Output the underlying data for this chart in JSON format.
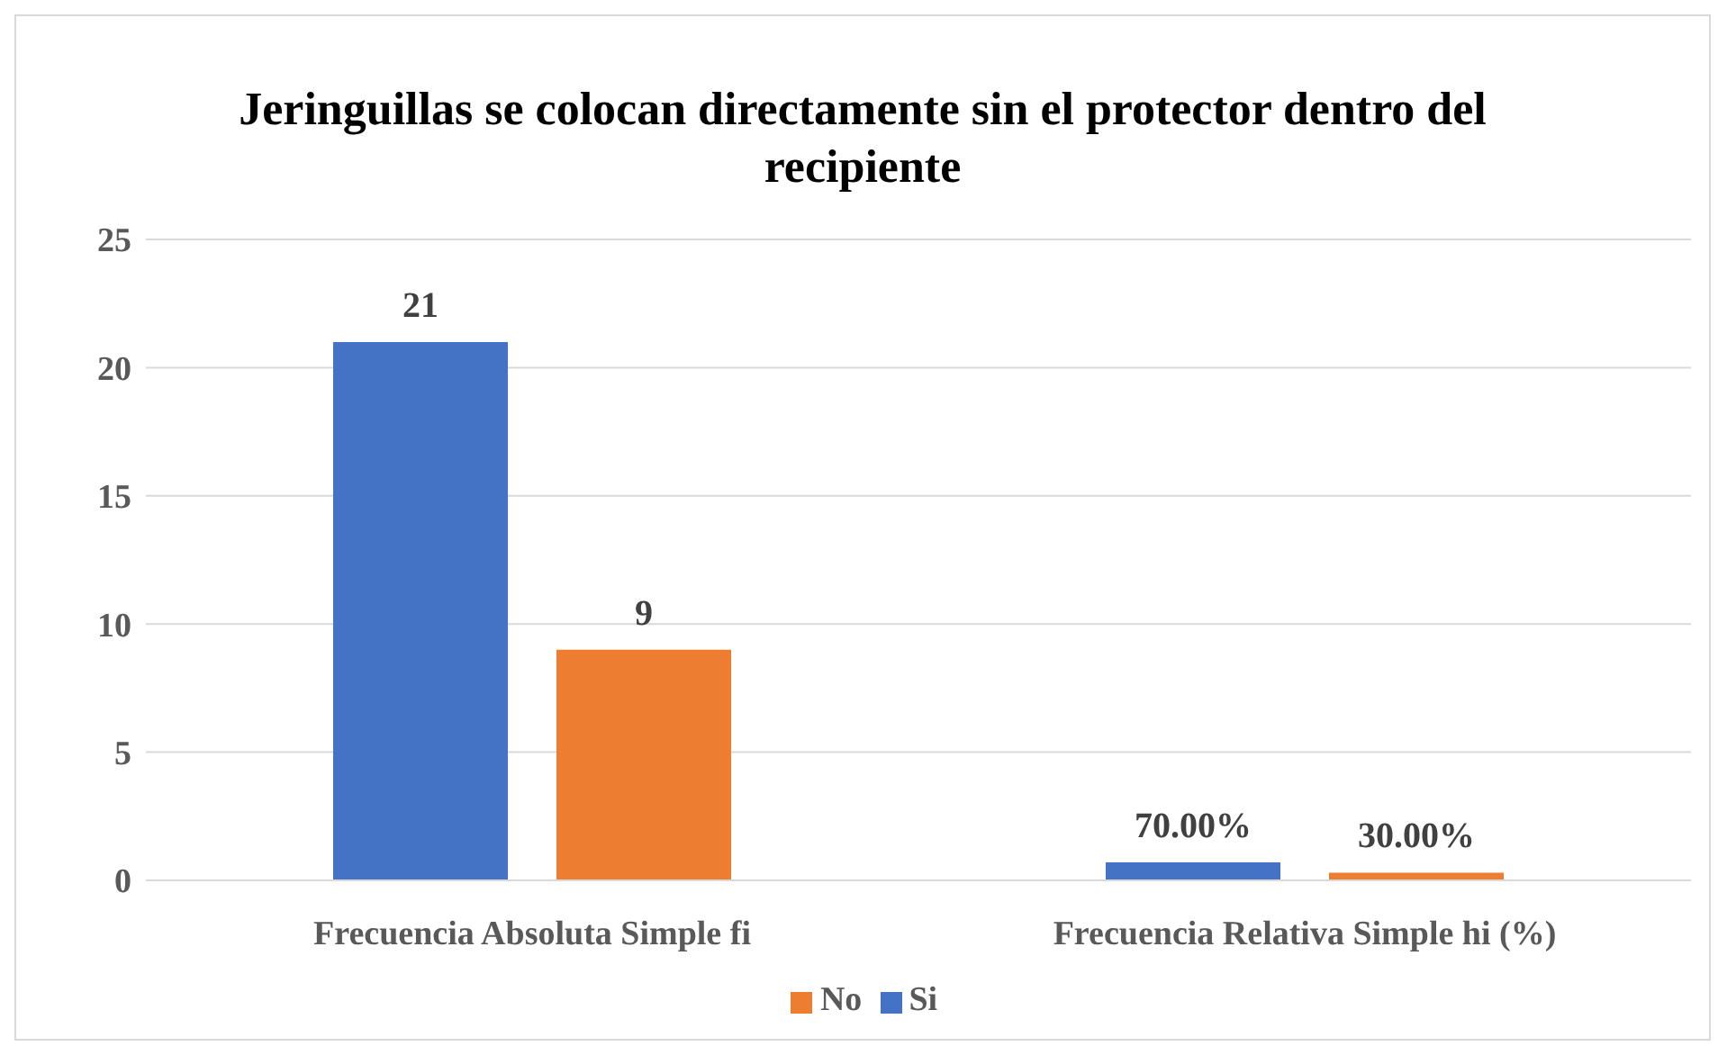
{
  "chart_data": {
    "type": "bar",
    "title": "Jeringuillas se colocan directamente sin el protector dentro del recipiente",
    "categories": [
      "Frecuencia Absoluta Simple fi",
      "Frecuencia Relativa Simple hi (%)"
    ],
    "series": [
      {
        "name": "Si",
        "color": "#4472c4",
        "values": [
          21,
          0.7
        ],
        "value_labels": [
          "21",
          "70.00%"
        ]
      },
      {
        "name": "No",
        "color": "#ed7d31",
        "values": [
          9,
          0.3
        ],
        "value_labels": [
          "9",
          "30.00%"
        ]
      }
    ],
    "ylim": [
      0,
      25
    ],
    "yticks": [
      0,
      5,
      10,
      15,
      20,
      25
    ],
    "grid": "y",
    "legend": "bottom"
  }
}
